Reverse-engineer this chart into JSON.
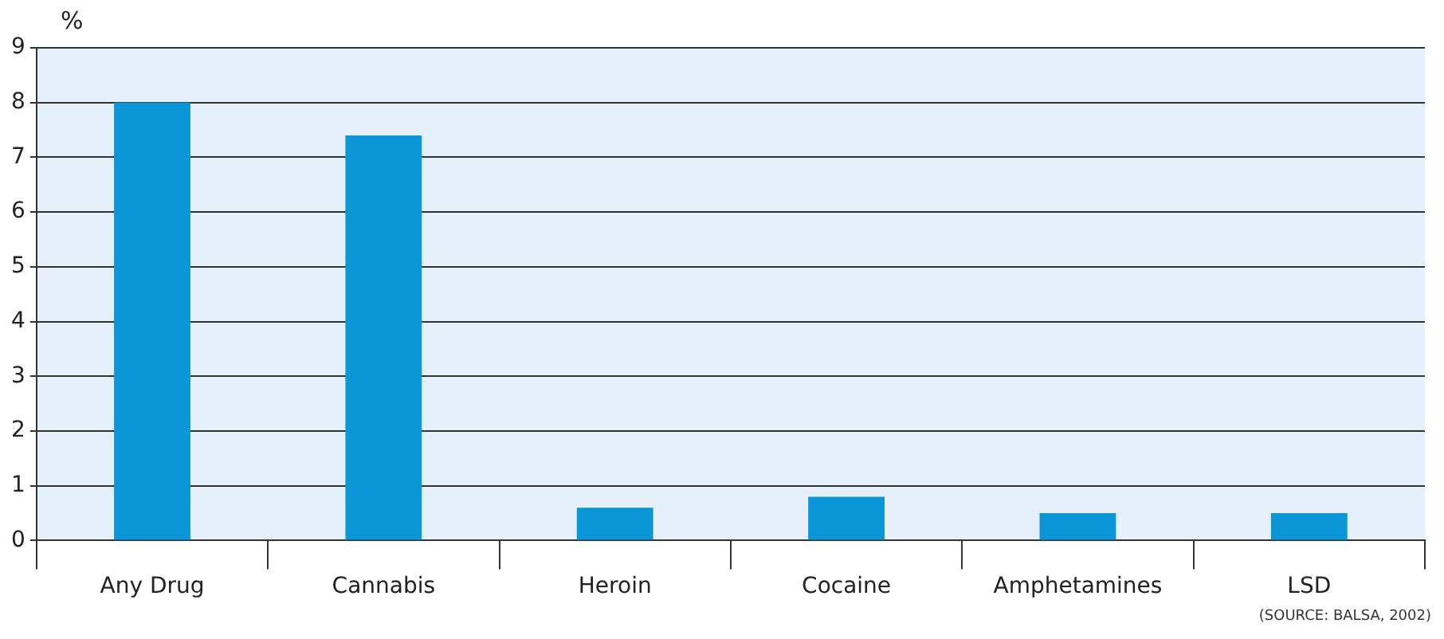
{
  "chart_data": {
    "type": "bar",
    "ylabel": "%",
    "categories": [
      "Any Drug",
      "Cannabis",
      "Heroin",
      "Cocaine",
      "Amphetamines",
      "LSD"
    ],
    "values": [
      8.0,
      7.4,
      0.6,
      0.8,
      0.5,
      0.5
    ],
    "color": "#0a96d7",
    "ylim": [
      0,
      9
    ],
    "yticks": [
      0,
      1,
      2,
      3,
      4,
      5,
      6,
      7,
      8,
      9
    ],
    "grid": "y",
    "annotations": [
      "(SOURCE:  BALSA, 2002)"
    ]
  }
}
